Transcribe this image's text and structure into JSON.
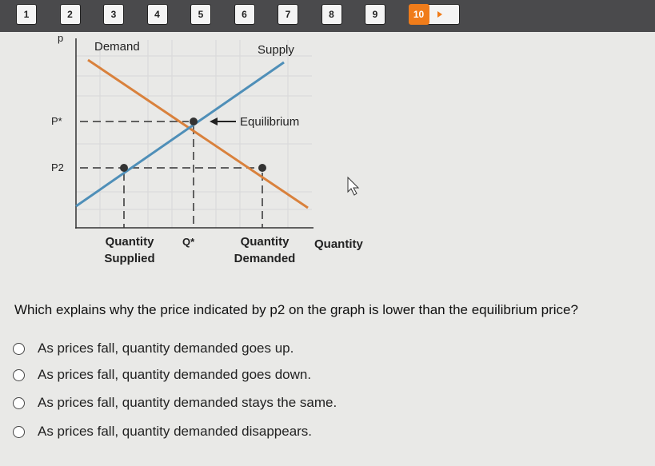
{
  "nav": {
    "pages": [
      "1",
      "2",
      "3",
      "4",
      "5",
      "6",
      "7",
      "8",
      "9",
      "10"
    ]
  },
  "graph": {
    "y_axis_label": "p",
    "demand_label": "Demand",
    "supply_label": "Supply",
    "p_star": "P*",
    "p2": "P2",
    "equilibrium": "Equilibrium",
    "q_supplied": "Quantity Supplied",
    "q_star": "Q*",
    "q_demanded": "Quantity Demanded",
    "x_axis_label": "Quantity"
  },
  "question": {
    "text": "Which explains why the price indicated by p2 on the graph is lower than the equilibrium price?",
    "options": [
      "As prices fall, quantity demanded goes up.",
      "As prices fall, quantity demanded goes down.",
      "As prices fall, quantity demanded stays the same.",
      "As prices fall, quantity demanded disappears."
    ]
  }
}
